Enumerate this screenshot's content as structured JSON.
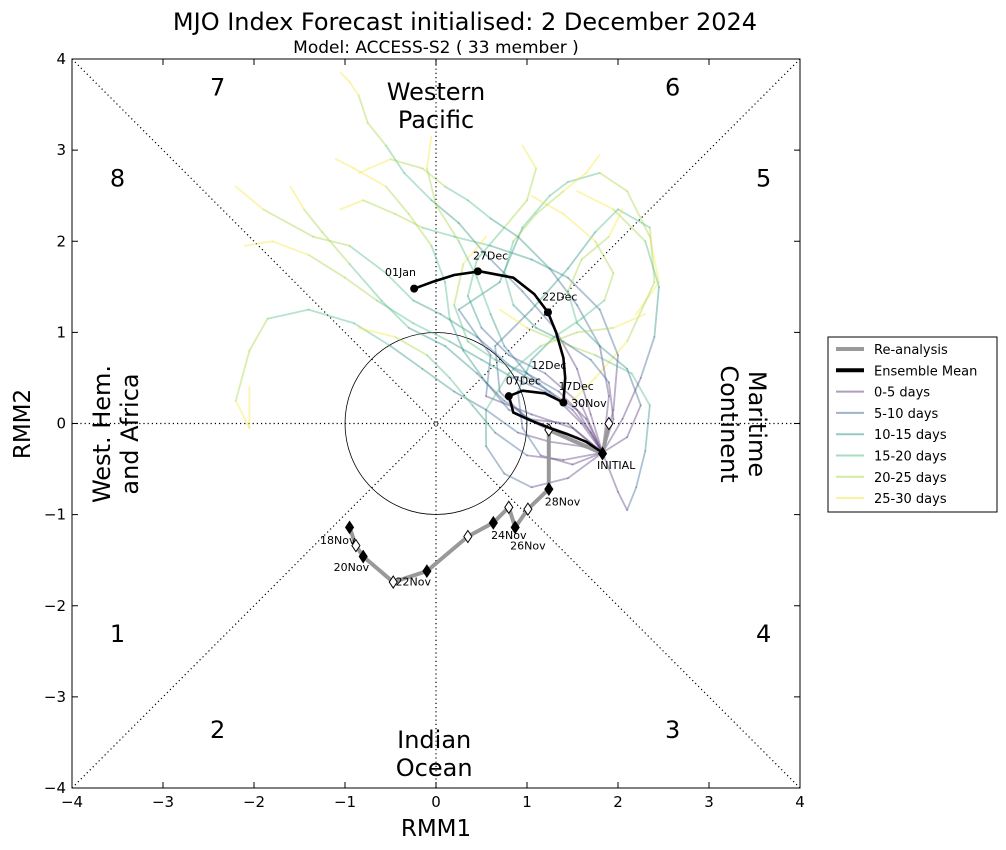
{
  "chart_data": {
    "type": "line",
    "title": "MJO Index Forecast initialised:  2  December 2024",
    "subtitle": "Model: ACCESS-S2 ( 33 member )",
    "xlabel": "RMM1",
    "ylabel": "RMM2",
    "xlim": [
      -4,
      4
    ],
    "ylim": [
      -4,
      4
    ],
    "xticks": [
      -4,
      -3,
      -2,
      -1,
      0,
      1,
      2,
      3,
      4
    ],
    "yticks": [
      -4,
      -3,
      -2,
      -1,
      0,
      1,
      2,
      3,
      4
    ],
    "tick_labels": [
      "−4",
      "−3",
      "−2",
      "−1",
      "0",
      "1",
      "2",
      "3",
      "4"
    ],
    "grid": false,
    "legend_position": "right",
    "legend": [
      "Re-analysis",
      "Ensemble Mean",
      "0-5 days",
      "5-10 days",
      "10-15 days",
      "15-20 days",
      "20-25 days",
      "25-30 days"
    ],
    "phase_labels": [
      {
        "label": "1",
        "x": -3.5,
        "y": -2.4
      },
      {
        "label": "2",
        "x": -2.4,
        "y": -3.45
      },
      {
        "label": "3",
        "x": 2.6,
        "y": -3.45
      },
      {
        "label": "4",
        "x": 3.6,
        "y": -2.4
      },
      {
        "label": "5",
        "x": 3.6,
        "y": 2.6
      },
      {
        "label": "6",
        "x": 2.6,
        "y": 3.6
      },
      {
        "label": "7",
        "x": -2.4,
        "y": 3.6
      },
      {
        "label": "8",
        "x": -3.5,
        "y": 2.6
      }
    ],
    "region_labels": {
      "western_pacific": [
        "Western",
        "Pacific"
      ],
      "indian_ocean": [
        "Indian",
        "Ocean"
      ],
      "west_hem": [
        "West. Hem.",
        "and Africa"
      ],
      "maritime": [
        "Maritime",
        "Continent"
      ]
    },
    "reanalysis": {
      "x": [
        -0.95,
        -0.88,
        -0.8,
        -0.47,
        -0.1,
        0.35,
        0.63,
        0.8,
        0.87,
        1.01,
        1.24,
        1.24,
        1.83,
        1.9
      ],
      "y": [
        -1.14,
        -1.34,
        -1.46,
        -1.74,
        -1.62,
        -1.24,
        -1.09,
        -0.92,
        -1.14,
        -0.94,
        -0.72,
        -0.07,
        -0.33,
        0.0
      ],
      "filled": [
        true,
        false,
        true,
        false,
        true,
        false,
        true,
        false,
        true,
        false,
        true,
        false,
        true,
        false
      ],
      "labels": [
        {
          "text": "18Nov",
          "x": -1.08,
          "y": -1.32
        },
        {
          "text": "20Nov",
          "x": -0.93,
          "y": -1.62
        },
        {
          "text": "22Nov",
          "x": -0.25,
          "y": -1.78
        },
        {
          "text": "24Nov",
          "x": 0.8,
          "y": -1.27
        },
        {
          "text": "26Nov",
          "x": 1.01,
          "y": -1.38
        },
        {
          "text": "28Nov",
          "x": 1.39,
          "y": -0.9
        },
        {
          "text": "30Nov",
          "x": 1.68,
          "y": 0.18
        },
        {
          "text": "INITIAL",
          "x": 1.98,
          "y": -0.5
        }
      ]
    },
    "ensemble_mean": {
      "x": [
        1.83,
        1.65,
        1.45,
        1.25,
        1.05,
        0.85,
        0.83,
        0.8,
        0.95,
        1.2,
        1.4,
        1.42,
        1.4,
        1.32,
        1.23,
        1.08,
        0.85,
        0.48,
        0.2,
        -0.05,
        -0.24
      ],
      "y": [
        -0.32,
        -0.2,
        -0.12,
        -0.05,
        0.03,
        0.12,
        0.2,
        0.3,
        0.36,
        0.33,
        0.23,
        0.5,
        0.72,
        1.0,
        1.22,
        1.42,
        1.6,
        1.67,
        1.63,
        1.55,
        1.48
      ],
      "markers": [
        {
          "x": 0.8,
          "y": 0.3
        },
        {
          "x": 1.4,
          "y": 0.23
        },
        {
          "x": 1.23,
          "y": 1.22
        },
        {
          "x": 0.46,
          "y": 1.67
        },
        {
          "x": -0.24,
          "y": 1.48
        }
      ],
      "labels": [
        {
          "text": "07Dec",
          "x": 0.96,
          "y": 0.43
        },
        {
          "text": "12Dec",
          "x": 1.24,
          "y": 0.6
        },
        {
          "text": "17Dec",
          "x": 1.54,
          "y": 0.37
        },
        {
          "text": "22Dec",
          "x": 1.36,
          "y": 1.35
        },
        {
          "text": "27Dec",
          "x": 0.6,
          "y": 1.8
        },
        {
          "text": "01Jan",
          "x": -0.39,
          "y": 1.62
        }
      ]
    },
    "ensemble_members": [
      {
        "x": [
          1.83,
          1.5,
          1.05,
          0.55,
          0.6,
          0.25,
          0.7,
          0.95,
          1.25,
          1.45,
          1.8,
          2.1,
          2.35,
          2.45,
          2.2
        ],
        "y": [
          -0.32,
          -0.05,
          0.1,
          0.3,
          0.75,
          1.25,
          1.55,
          2.15,
          2.5,
          2.65,
          2.75,
          2.55,
          2.05,
          1.55,
          1.2
        ]
      },
      {
        "x": [
          1.83,
          1.55,
          1.25,
          0.85,
          0.45,
          0.05,
          -0.25,
          -0.55,
          -0.95,
          -1.35,
          -1.9,
          -2.2
        ],
        "y": [
          -0.32,
          0.15,
          0.35,
          0.6,
          0.95,
          1.2,
          1.35,
          1.65,
          1.95,
          2.05,
          2.35,
          2.6
        ]
      },
      {
        "x": [
          1.83,
          1.45,
          1.0,
          0.7,
          0.65,
          1.05,
          1.45,
          1.75,
          2.0,
          2.35,
          2.4,
          2.1,
          1.75,
          1.5
        ],
        "y": [
          -0.32,
          0.0,
          0.05,
          0.35,
          0.85,
          1.25,
          1.7,
          2.1,
          2.35,
          2.15,
          1.55,
          0.9,
          0.5,
          0.25
        ]
      },
      {
        "x": [
          1.83,
          1.6,
          1.25,
          0.9,
          0.55,
          0.2,
          -0.15,
          -0.5,
          -0.9,
          -1.4,
          -1.85,
          -2.05,
          -2.2,
          -2.05,
          -2.05
        ],
        "y": [
          -0.32,
          -0.25,
          -0.2,
          -0.1,
          0.15,
          0.35,
          0.6,
          0.85,
          1.1,
          1.25,
          1.15,
          0.8,
          0.25,
          -0.05,
          0.4
        ]
      },
      {
        "x": [
          1.83,
          1.7,
          1.55,
          1.3,
          0.95,
          0.55,
          0.25,
          -0.05,
          -0.35,
          -0.55,
          -0.75,
          -0.85,
          -0.95,
          -1.05
        ],
        "y": [
          -0.32,
          0.1,
          0.6,
          1.05,
          1.45,
          1.85,
          2.2,
          2.45,
          2.75,
          3.05,
          3.3,
          3.6,
          3.75,
          3.85
        ]
      },
      {
        "x": [
          1.83,
          1.95,
          2.0,
          1.8,
          1.45,
          1.05,
          0.6,
          0.2,
          -0.15,
          -0.45,
          -0.8,
          -1.05
        ],
        "y": [
          -0.32,
          0.15,
          0.75,
          1.25,
          1.6,
          1.8,
          1.95,
          2.05,
          2.15,
          2.3,
          2.45,
          2.35
        ]
      },
      {
        "x": [
          1.83,
          1.9,
          1.8,
          1.55,
          1.25,
          0.9,
          0.6,
          0.35,
          0.1,
          -0.15,
          -0.5,
          -0.85
        ],
        "y": [
          -0.32,
          0.3,
          0.85,
          1.3,
          1.7,
          2.05,
          2.25,
          2.45,
          2.6,
          2.8,
          2.9,
          2.75
        ]
      },
      {
        "x": [
          1.83,
          1.6,
          1.2,
          0.8,
          0.5,
          0.35,
          0.45,
          0.75,
          1.0,
          1.1,
          0.95
        ],
        "y": [
          -0.32,
          0.2,
          0.55,
          0.75,
          1.05,
          1.4,
          1.8,
          2.15,
          2.45,
          2.8,
          3.05
        ]
      },
      {
        "x": [
          1.83,
          2.0,
          2.1,
          2.2,
          2.3,
          2.35,
          2.15,
          1.75,
          1.35,
          1.0,
          0.7
        ],
        "y": [
          -0.32,
          -0.75,
          -0.95,
          -0.7,
          -0.3,
          0.2,
          0.55,
          0.75,
          0.9,
          1.05,
          1.25
        ]
      },
      {
        "x": [
          1.83,
          1.55,
          1.15,
          0.8,
          0.55,
          0.3,
          0.15,
          0.1,
          -0.05,
          -0.3,
          -0.55,
          -0.9,
          -1.1
        ],
        "y": [
          -0.32,
          -0.15,
          0.0,
          0.15,
          0.45,
          0.8,
          1.15,
          1.55,
          1.95,
          2.3,
          2.6,
          2.8,
          2.9
        ]
      },
      {
        "x": [
          1.83,
          1.4,
          1.0,
          0.65,
          0.4,
          0.15,
          -0.1,
          -0.45,
          -0.85
        ],
        "y": [
          -0.32,
          -0.4,
          -0.35,
          -0.1,
          0.2,
          0.5,
          0.75,
          0.95,
          1.05
        ]
      },
      {
        "x": [
          1.83,
          2.05,
          2.25,
          2.4,
          2.45,
          2.3,
          1.95,
          1.55
        ],
        "y": [
          -0.32,
          0.05,
          0.5,
          0.95,
          1.5,
          2.0,
          2.35,
          2.55
        ]
      },
      {
        "x": [
          1.83,
          1.5,
          1.15,
          0.95,
          0.9,
          1.05,
          1.3,
          1.6,
          1.85,
          1.95,
          1.75,
          1.4,
          1.05
        ],
        "y": [
          -0.32,
          -0.45,
          -0.35,
          -0.05,
          0.35,
          0.7,
          0.95,
          1.15,
          1.35,
          1.65,
          2.0,
          2.3,
          2.5
        ]
      },
      {
        "x": [
          1.83,
          1.65,
          1.35,
          1.0,
          0.65,
          0.35,
          0.2,
          0.3,
          0.55
        ],
        "y": [
          -0.32,
          0.05,
          0.35,
          0.55,
          0.7,
          0.9,
          1.3,
          1.75,
          2.05
        ]
      },
      {
        "x": [
          1.83,
          1.7,
          1.5,
          1.2,
          0.85,
          0.5,
          0.15,
          -0.25,
          -0.65,
          -1.0,
          -1.4,
          -1.8,
          -2.1
        ],
        "y": [
          -0.32,
          -0.1,
          0.15,
          0.35,
          0.5,
          0.7,
          0.9,
          1.1,
          1.35,
          1.6,
          1.85,
          2.0,
          1.95
        ]
      },
      {
        "x": [
          1.83,
          2.1,
          2.25,
          2.1,
          1.8,
          1.55,
          1.45,
          1.6,
          1.9,
          2.05
        ],
        "y": [
          -0.32,
          -0.15,
          0.2,
          0.6,
          0.85,
          1.1,
          1.45,
          1.8,
          2.05,
          2.35
        ]
      },
      {
        "x": [
          1.83,
          1.45,
          1.05,
          0.75,
          0.55,
          0.55,
          0.8,
          1.15,
          1.55,
          1.95,
          2.3
        ],
        "y": [
          -0.32,
          -0.6,
          -0.7,
          -0.55,
          -0.25,
          0.15,
          0.55,
          0.85,
          1.0,
          1.05,
          1.2
        ]
      },
      {
        "x": [
          1.83,
          1.5,
          1.1,
          0.75,
          0.45,
          0.1,
          -0.3,
          -0.6,
          -0.95,
          -1.25,
          -1.45,
          -1.6
        ],
        "y": [
          -0.32,
          -0.2,
          0.0,
          0.25,
          0.55,
          0.85,
          1.05,
          1.35,
          1.75,
          2.1,
          2.35,
          2.6
        ]
      },
      {
        "x": [
          1.83,
          1.6,
          1.3,
          1.0,
          0.75,
          0.6,
          0.45,
          0.25,
          0.0,
          -0.1,
          -0.05
        ],
        "y": [
          -0.32,
          0.0,
          0.3,
          0.55,
          0.85,
          1.2,
          1.6,
          2.0,
          2.4,
          2.8,
          3.15
        ]
      },
      {
        "x": [
          1.83,
          1.95,
          1.9,
          1.7,
          1.4,
          1.1,
          0.85,
          0.75,
          0.85,
          1.1,
          1.4,
          1.65,
          1.8
        ],
        "y": [
          -0.32,
          0.05,
          0.45,
          0.7,
          0.9,
          1.05,
          1.3,
          1.65,
          2.0,
          2.3,
          2.55,
          2.75,
          2.95
        ]
      }
    ]
  }
}
